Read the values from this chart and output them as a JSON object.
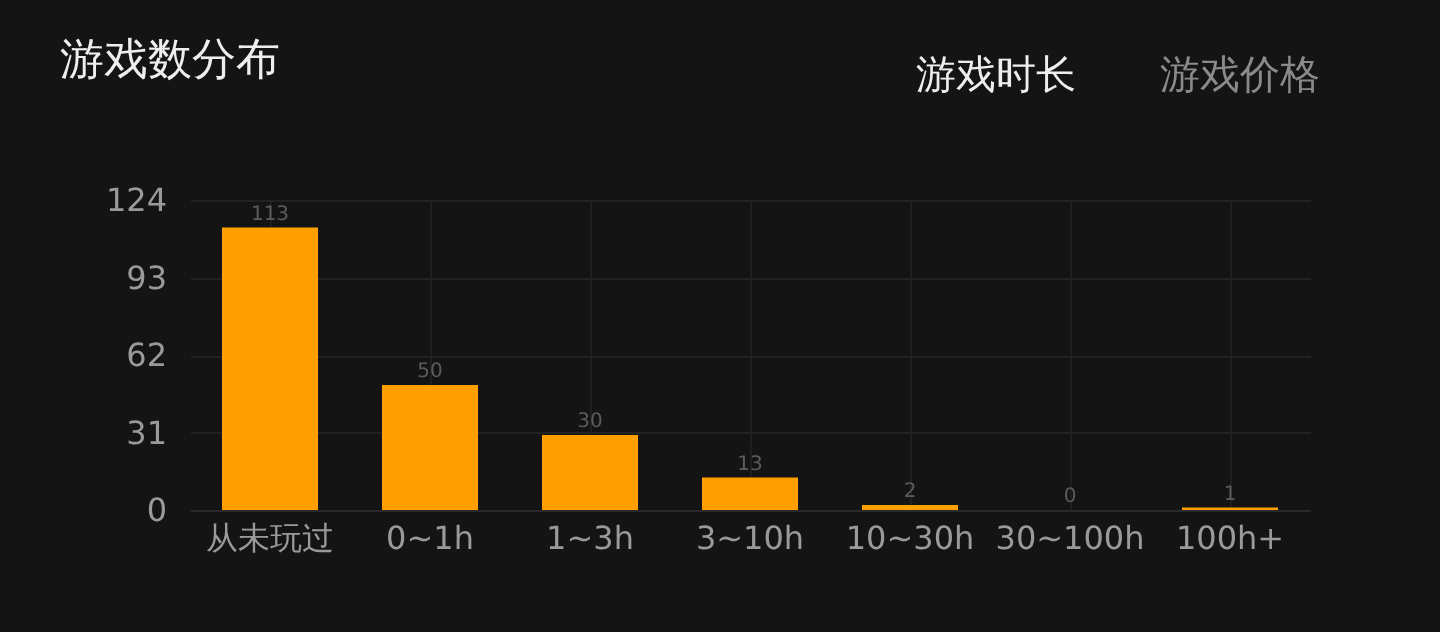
{
  "chart_data": {
    "type": "bar",
    "title": "游戏数分布",
    "annotations": [
      "游戏时长",
      "游戏价格"
    ],
    "categories": [
      "从未玩过",
      "0~1h",
      "1~3h",
      "3~10h",
      "10~30h",
      "30~100h",
      "100h+"
    ],
    "values": [
      113,
      50,
      30,
      13,
      2,
      0,
      1
    ],
    "color": "#ffa000",
    "ylim": [
      0,
      124
    ],
    "yticks": [
      0,
      31,
      62,
      93,
      124
    ],
    "grid": true,
    "data_labels": true
  }
}
